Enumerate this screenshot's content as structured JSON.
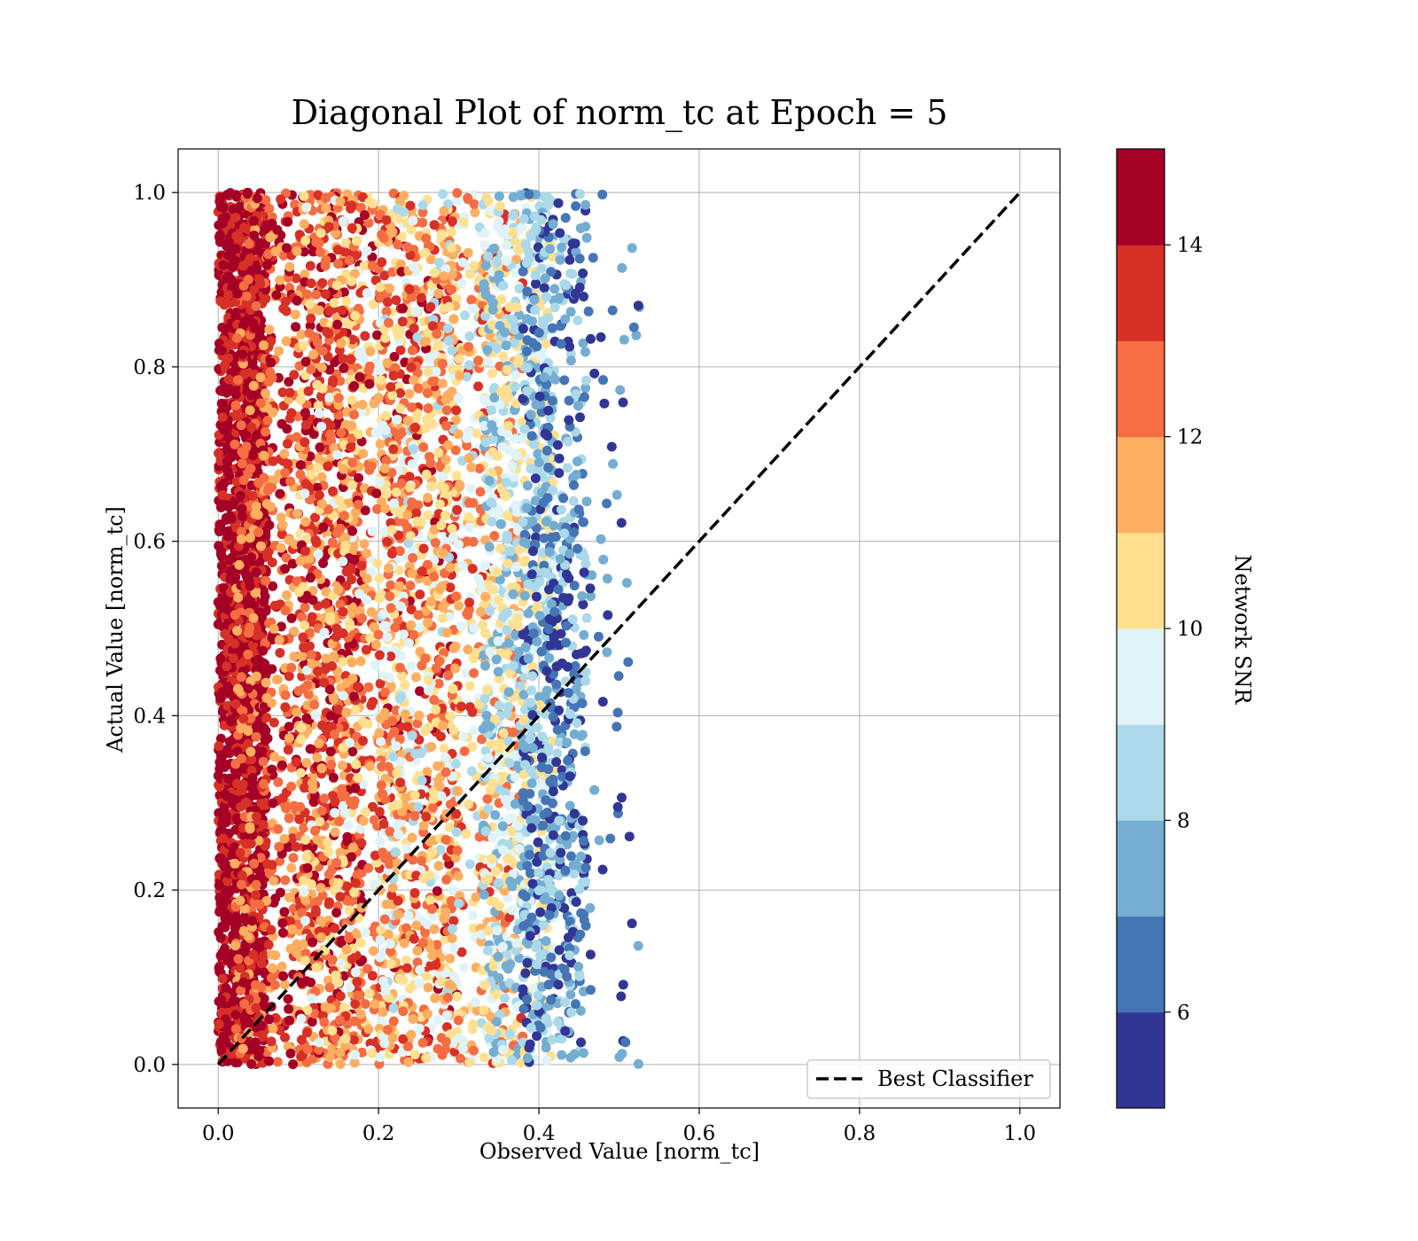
{
  "chart_data": {
    "type": "scatter",
    "title": "Diagonal Plot of norm_tc at Epoch = 5",
    "xlabel": "Observed Value [norm_tc]",
    "ylabel": "Actual Value [norm_tc]",
    "xlim": [
      -0.05,
      1.05
    ],
    "ylim": [
      -0.05,
      1.05
    ],
    "xticks": [
      0.0,
      0.2,
      0.4,
      0.6,
      0.8,
      1.0
    ],
    "yticks": [
      0.0,
      0.2,
      0.4,
      0.6,
      0.8,
      1.0
    ],
    "xtick_labels": [
      "0.0",
      "0.2",
      "0.4",
      "0.6",
      "0.8",
      "1.0"
    ],
    "ytick_labels": [
      "0.0",
      "0.2",
      "0.4",
      "0.6",
      "0.8",
      "1.0"
    ],
    "grid": true,
    "point_cloud": {
      "description_ranges": {
        "x_range": [
          0.0,
          0.53
        ],
        "y_range": [
          0.0,
          1.0
        ],
        "snr_range": [
          5,
          15
        ]
      },
      "bands": [
        {
          "x_min": 0.0,
          "x_max": 0.06,
          "snr_min": 13.5,
          "snr_max": 15.0
        },
        {
          "x_min": 0.02,
          "x_max": 0.18,
          "snr_min": 11.0,
          "snr_max": 15.0
        },
        {
          "x_min": 0.1,
          "x_max": 0.3,
          "snr_min": 9.5,
          "snr_max": 14.5
        },
        {
          "x_min": 0.2,
          "x_max": 0.38,
          "snr_min": 8.5,
          "snr_max": 13.5
        },
        {
          "x_min": 0.33,
          "x_max": 0.42,
          "snr_min": 7.0,
          "snr_max": 11.0
        },
        {
          "x_min": 0.38,
          "x_max": 0.46,
          "snr_min": 5.0,
          "snr_max": 9.0
        },
        {
          "x_min": 0.44,
          "x_max": 0.53,
          "snr_min": 5.0,
          "snr_max": 8.0
        }
      ]
    },
    "reference_line": {
      "label": "Best Classifier",
      "x": [
        0.0,
        1.0
      ],
      "y": [
        0.0,
        1.0
      ],
      "style": "dashed",
      "color": "#000000"
    },
    "legend": {
      "position": "lower-right",
      "entries": [
        "Best Classifier"
      ]
    },
    "colorbar": {
      "label": "Network SNR",
      "range": [
        5,
        15
      ],
      "ticks": [
        6,
        8,
        10,
        12,
        14
      ],
      "tick_labels": [
        "6",
        "8",
        "10",
        "12",
        "14"
      ],
      "levels": [
        5,
        6,
        7,
        8,
        9,
        10,
        11,
        12,
        13,
        14,
        15
      ],
      "colors": [
        "#313695",
        "#4575b4",
        "#74add1",
        "#abd9e9",
        "#e0f3f8",
        "#fee090",
        "#fdae61",
        "#f46d43",
        "#d73027",
        "#a50026"
      ]
    }
  }
}
